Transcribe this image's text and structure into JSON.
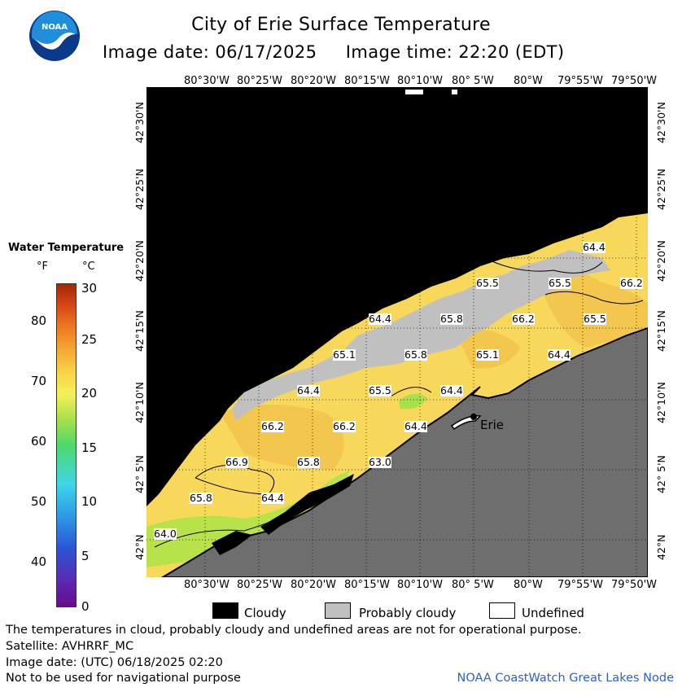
{
  "header": {
    "title": "City of Erie Surface Temperature",
    "image_date_label": "Image date: 06/17/2025",
    "image_time_label": "Image time: 22:20 (EDT)"
  },
  "logo": {
    "text": "NOAA",
    "icon": "noaa-logo-icon",
    "colors": {
      "sky": "#1f8fdc",
      "bird": "#ffffff",
      "sea": "#0b3a8a"
    }
  },
  "map": {
    "top_lon_ticks": [
      "80°30'W",
      "80°25'W",
      "80°20'W",
      "80°15'W",
      "80°10'W",
      "80° 5'W",
      "80°W",
      "79°55'W",
      "79°50'W"
    ],
    "bottom_lon_ticks": [
      "80°30'W",
      "80°25'W",
      "80°20'W",
      "80°15'W",
      "80°10'W",
      "80° 5'W",
      "80°W",
      "79°55'W",
      "79°50'W"
    ],
    "left_lat_ticks": [
      "42°30'N",
      "42°25'N",
      "42°20'N",
      "42°15'N",
      "42°10'N",
      "42° 5'N",
      "42°N"
    ],
    "right_lat_ticks": [
      "42°30'N",
      "42°25'N",
      "42°20'N",
      "42°15'N",
      "42°10'N",
      "42° 5'N",
      "42°N"
    ],
    "city_label": "Erie",
    "contour_labels": [
      "64.4",
      "65.5",
      "66.2",
      "65.5",
      "64.4",
      "65.8",
      "66.2",
      "65.5",
      "65.1",
      "65.8",
      "65.1",
      "64.4",
      "64.4",
      "65.5",
      "64.4",
      "66.2",
      "66.2",
      "64.4",
      "66.9",
      "65.8",
      "63.0",
      "65.8",
      "64.4",
      "64.0"
    ],
    "colors": {
      "no_data": "#000000",
      "land": "#6e6e6e",
      "probably_cloudy": "#c0c0c0",
      "water_warm": "#f7d85a",
      "water_cool": "#a8e04a"
    }
  },
  "legend": {
    "title": "Water Temperature",
    "unit_f": "°F",
    "unit_c": "°C",
    "f_ticks": [
      "80",
      "70",
      "60",
      "50",
      "40"
    ],
    "c_ticks": [
      "30",
      "25",
      "20",
      "15",
      "10",
      "5",
      "0"
    ]
  },
  "key": {
    "cloudy": "Cloudy",
    "probably_cloudy": "Probably cloudy",
    "undefined": "Undefined"
  },
  "footer": {
    "line1": "The temperatures in cloud, probably cloudy and undefined areas are not for operational purpose.",
    "line2": "Satellite: AVHRRF_MC",
    "line3": "Image date: (UTC) 06/18/2025  02:20",
    "line4": "Not to be used for navigational purpose",
    "credit": "NOAA CoastWatch Great Lakes Node"
  }
}
